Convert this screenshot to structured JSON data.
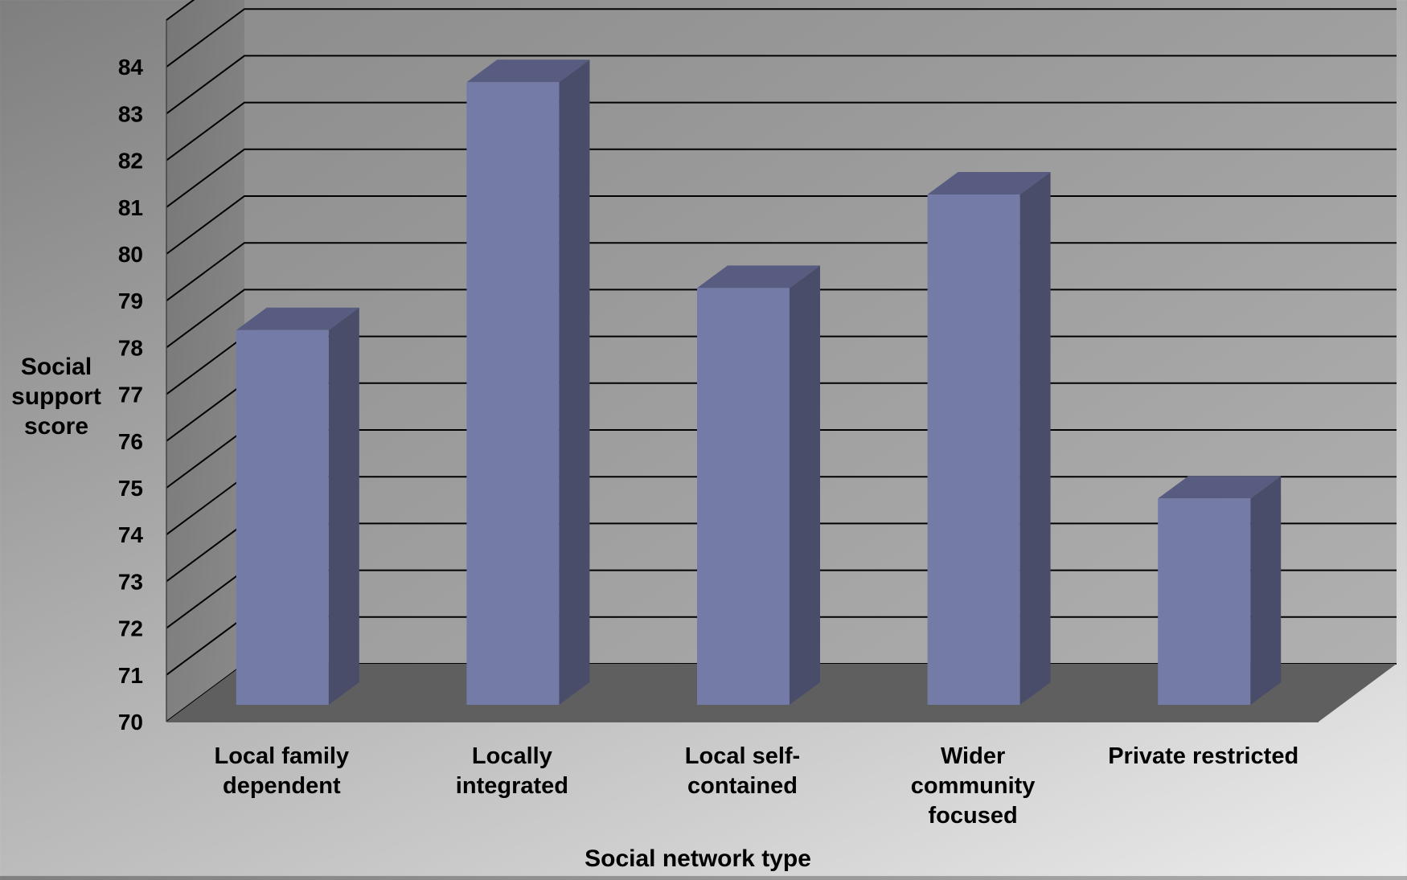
{
  "chart_data": {
    "type": "bar",
    "categories": [
      [
        "Local family",
        "dependent"
      ],
      [
        "Locally",
        "integrated"
      ],
      [
        "Local self-",
        "contained"
      ],
      [
        "Wider",
        "community",
        "focused"
      ],
      [
        "Private restricted"
      ]
    ],
    "values": [
      78.2,
      83.5,
      79.1,
      81.1,
      74.6
    ],
    "ylabel": [
      "Social",
      "support",
      "score"
    ],
    "xlabel": "Social network type",
    "ylim": [
      70,
      85
    ],
    "yticks": [
      70,
      71,
      72,
      73,
      74,
      75,
      76,
      77,
      78,
      79,
      80,
      81,
      82,
      83,
      84
    ],
    "grid": true,
    "style": "3d-column",
    "colors": {
      "bar_front": "#737ba6",
      "bar_side": "#4a4d6a",
      "bar_top": "#575c80",
      "floor": "#5f5f5f",
      "side_wall": "#7e7e7e",
      "back_wall_left": "#8c8c8c",
      "back_wall_right": "#aeaeae"
    }
  }
}
